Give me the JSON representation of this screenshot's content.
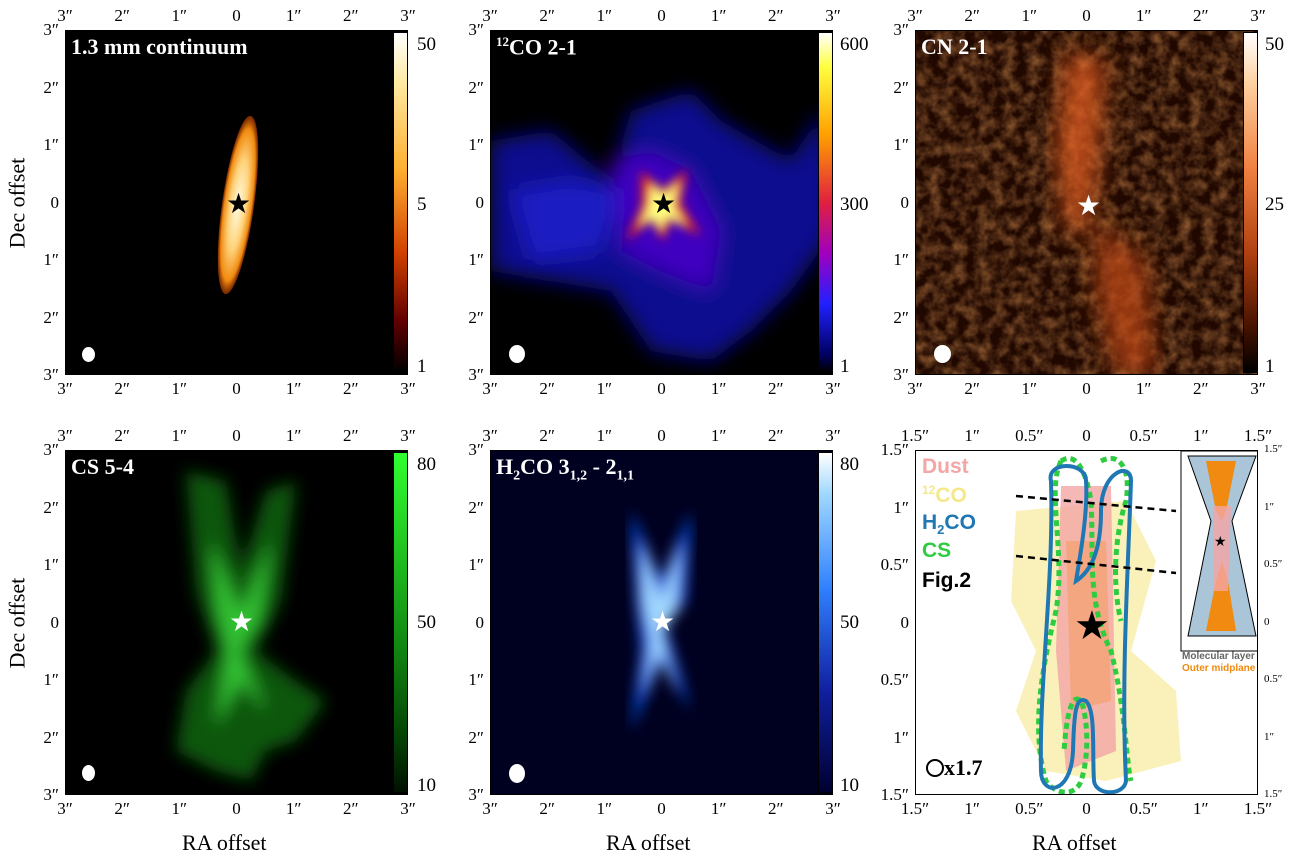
{
  "axes": {
    "x_label": "RA offset",
    "y_label": "Dec offset",
    "ticks_3": [
      "3″",
      "2″",
      "1″",
      "0",
      "1″",
      "2″",
      "3″"
    ],
    "ticks_15": [
      "1.5″",
      "1″",
      "0.5″",
      "0",
      "0.5″",
      "1″",
      "1.5″"
    ],
    "ticks_15_y": [
      "1.5″",
      "1″",
      "0.5″",
      "0",
      "0.5″",
      "1″",
      "1.5″"
    ]
  },
  "panels": [
    {
      "title": "1.3 mm continuum",
      "colorbar": [
        "50",
        "5",
        "1"
      ],
      "colormap": "afmhot",
      "star_color": "#000000"
    },
    {
      "title_sup": "12",
      "title": "CO 2-1",
      "colorbar": [
        "600",
        "300",
        "1"
      ],
      "colormap": "gnuplot",
      "star_color": "#000000"
    },
    {
      "title": "CN 2-1",
      "colorbar": [
        "50",
        "25",
        "1"
      ],
      "colormap": "orange",
      "star_color": "#ffffff"
    },
    {
      "title": "CS 5-4",
      "colorbar": [
        "80",
        "50",
        "10"
      ],
      "colormap": "green",
      "star_color": "#ffffff"
    },
    {
      "title_html_parts": [
        "H",
        "2",
        "CO 3",
        "1,2",
        " - 2",
        "1,1"
      ],
      "colorbar": [
        "80",
        "50",
        "10"
      ],
      "colormap": "blue",
      "star_color": "#ffffff"
    }
  ],
  "schematic": {
    "legend": {
      "dust": "Dust",
      "co_sup": "12",
      "co": "CO",
      "h2co_a": "H",
      "h2co_sub": "2",
      "h2co_b": "CO",
      "cs": "CS",
      "fig": "Fig.2"
    },
    "legend_colors": {
      "dust": "#f4a5a5",
      "co": "#f5e88a",
      "h2co": "#1f77b4",
      "cs": "#2ecc40"
    },
    "zoom": "x1.7",
    "inset_label_1": "Molecular layer",
    "inset_label_2": "Outer midplane"
  }
}
